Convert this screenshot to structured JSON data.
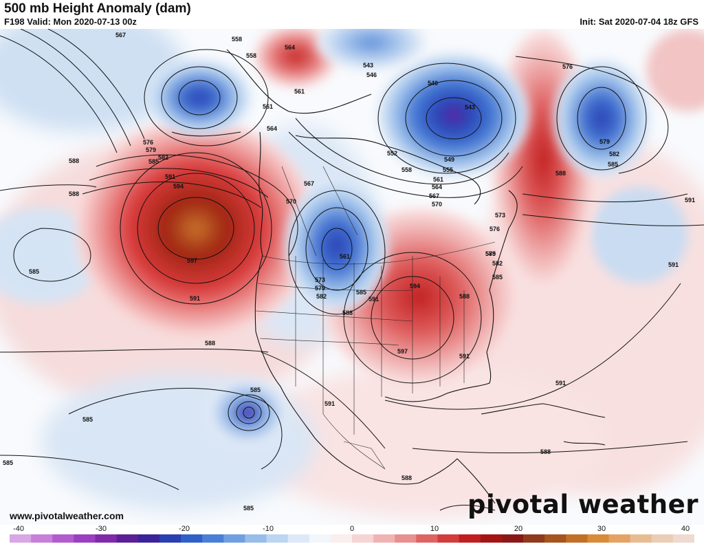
{
  "header": {
    "title": "500 mb Height Anomaly (dam)",
    "valid": "F198 Valid: Mon 2020-07-13 00z",
    "init": "Init: Sat 2020-07-04 18z GFS"
  },
  "footer": {
    "url": "www.pivotalweather.com",
    "brand": "pivotal weather"
  },
  "colorbar": {
    "ticks": [
      "-40",
      "-30",
      "-20",
      "-10",
      "0",
      "10",
      "20",
      "30",
      "40"
    ],
    "colors": [
      "#d9a6e6",
      "#c77fd9",
      "#b25bcc",
      "#9a3fbf",
      "#7f2aa8",
      "#5d1f95",
      "#3b2399",
      "#2a3fb0",
      "#2f5fc8",
      "#4a7fd6",
      "#6f9fdf",
      "#97bde8",
      "#bcd5f0",
      "#dde9f7",
      "#f3f6fb",
      "#fbeeee",
      "#f6d4d4",
      "#f0b3b3",
      "#e88f8f",
      "#de6464",
      "#d23c3c",
      "#c01f1f",
      "#a51414",
      "#8a1818",
      "#8f3a1c",
      "#a6551f",
      "#c27028",
      "#d88b39",
      "#e4a364",
      "#e8bc93",
      "#ebcdb6",
      "#eedad0"
    ]
  },
  "map": {
    "contour_labels": [
      "567",
      "558",
      "558",
      "564",
      "561",
      "561",
      "564",
      "543",
      "546",
      "540",
      "543",
      "576",
      "579",
      "582",
      "585",
      "576",
      "579",
      "582",
      "585",
      "588",
      "591",
      "594",
      "597",
      "591",
      "588",
      "588",
      "552",
      "549",
      "555",
      "558",
      "561",
      "564",
      "567",
      "570",
      "573",
      "576",
      "567",
      "570",
      "561",
      "573",
      "579",
      "582",
      "585",
      "585",
      "591",
      "588",
      "594",
      "597",
      "591",
      "588",
      "585",
      "585",
      "585",
      "585",
      "588",
      "591",
      "591",
      "591",
      "591",
      "588",
      "588",
      "585",
      "585",
      "582",
      "579"
    ],
    "anomaly_centers": [
      {
        "name": "ridge-northeast-pacific",
        "sign": "positive"
      },
      {
        "name": "ridge-central-us",
        "sign": "positive"
      },
      {
        "name": "ridge-north-atlantic",
        "sign": "positive"
      },
      {
        "name": "trough-northern-plains",
        "sign": "negative"
      },
      {
        "name": "trough-hudson-bay",
        "sign": "negative"
      },
      {
        "name": "trough-bering-sea",
        "sign": "negative"
      },
      {
        "name": "trough-north-atlantic",
        "sign": "negative"
      },
      {
        "name": "low-eastern-pacific",
        "sign": "negative"
      }
    ]
  }
}
